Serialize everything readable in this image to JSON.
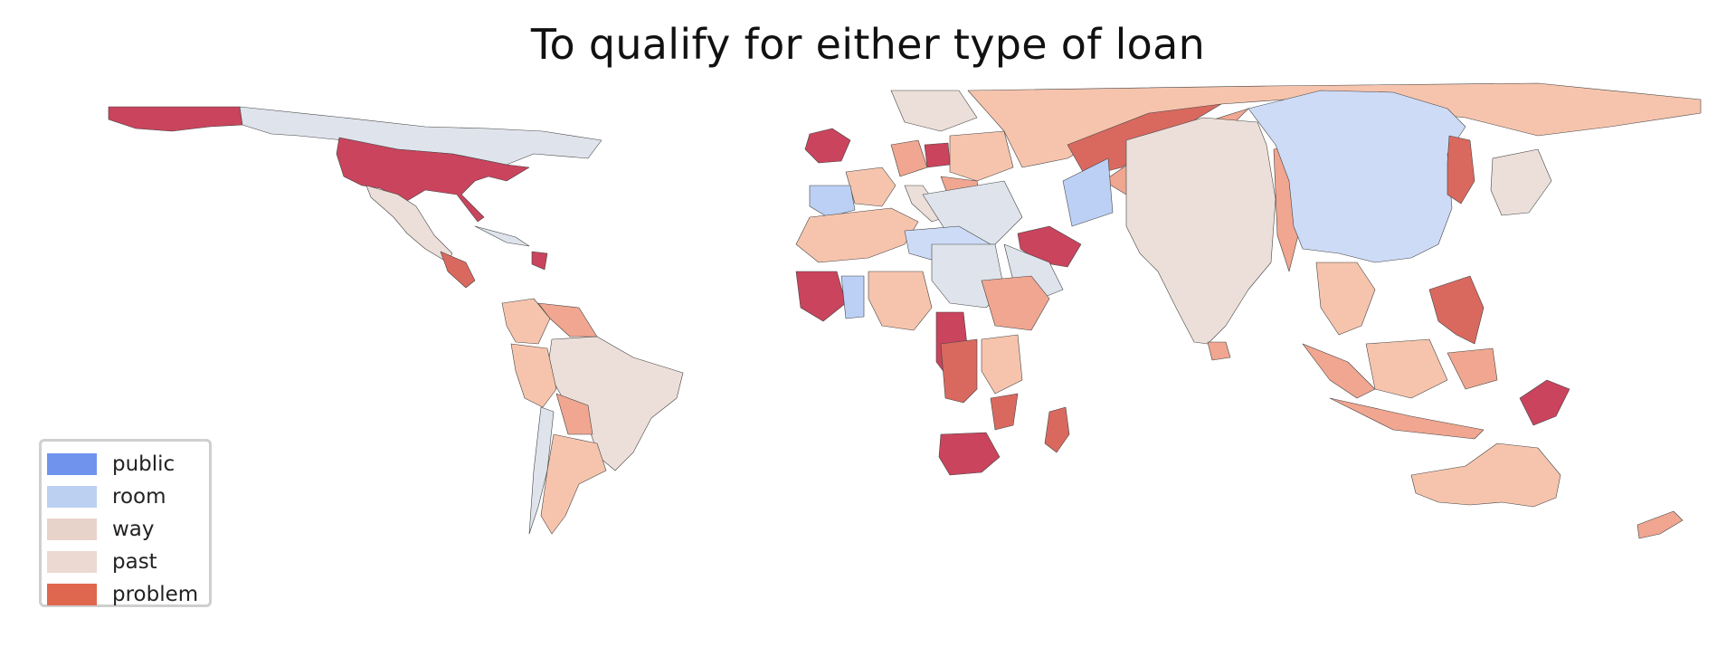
{
  "map": {
    "title": "To qualify for either type of loan",
    "legend": {
      "items": [
        {
          "label": "public",
          "color": "#7093ee"
        },
        {
          "label": "room",
          "color": "#bcd0f2"
        },
        {
          "label": "way",
          "color": "#e8d3cb"
        },
        {
          "label": "past",
          "color": "#ecd9d2"
        },
        {
          "label": "problem",
          "color": "#e0674f"
        }
      ]
    },
    "palette": {
      "very_high": "#c9445c",
      "high": "#d9695f",
      "mid_high": "#f0a690",
      "mid": "#f6c4ad",
      "neutral": "#ecdfd9",
      "grey_blue": "#dfe4ec",
      "low": "#cddbf6",
      "lower": "#bcd0f5",
      "outline": "#444444"
    }
  }
}
